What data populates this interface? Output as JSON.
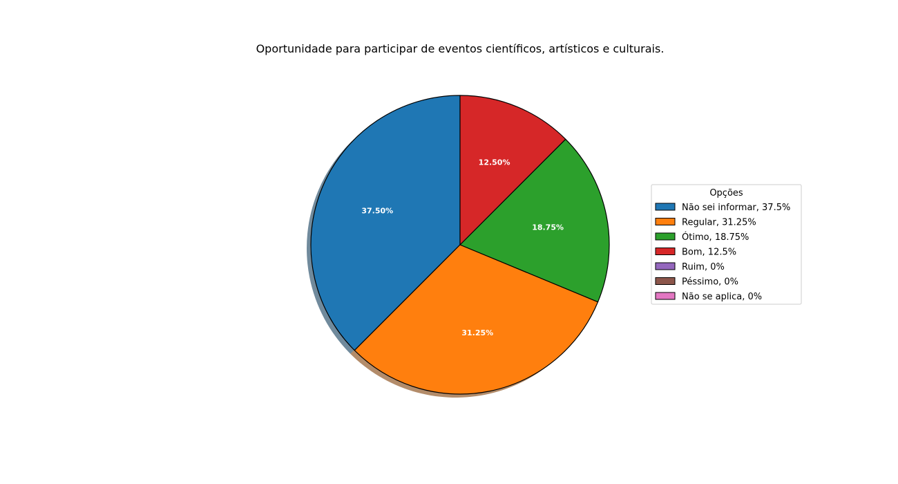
{
  "chart_data": {
    "type": "pie",
    "title": "Oportunidade para participar de eventos científicos, artísticos e culturais.",
    "slices": [
      {
        "label": "Não sei informar",
        "value": 37.5,
        "pct_label": "37.50%",
        "color": "#1f77b4"
      },
      {
        "label": "Regular",
        "value": 31.25,
        "pct_label": "31.25%",
        "color": "#ff7f0e"
      },
      {
        "label": "Ótimo",
        "value": 18.75,
        "pct_label": "18.75%",
        "color": "#2ca02c"
      },
      {
        "label": "Bom",
        "value": 12.5,
        "pct_label": "12.50%",
        "color": "#d62728"
      },
      {
        "label": "Ruim",
        "value": 0,
        "pct_label": "",
        "color": "#9467bd"
      },
      {
        "label": "Péssimo",
        "value": 0,
        "pct_label": "",
        "color": "#8c564b"
      },
      {
        "label": "Não se aplica",
        "value": 0,
        "pct_label": "",
        "color": "#e377c2"
      }
    ],
    "legend": {
      "title": "Opções",
      "placement": "right",
      "entries": [
        "Não sei informar, 37.5%",
        "Regular, 31.25%",
        "Ótimo, 18.75%",
        "Bom, 12.5%",
        "Ruim, 0%",
        "Péssimo, 0%",
        "Não se aplica, 0%"
      ]
    },
    "start_angle_deg": 90,
    "direction": "counterclockwise",
    "shadow": true
  }
}
